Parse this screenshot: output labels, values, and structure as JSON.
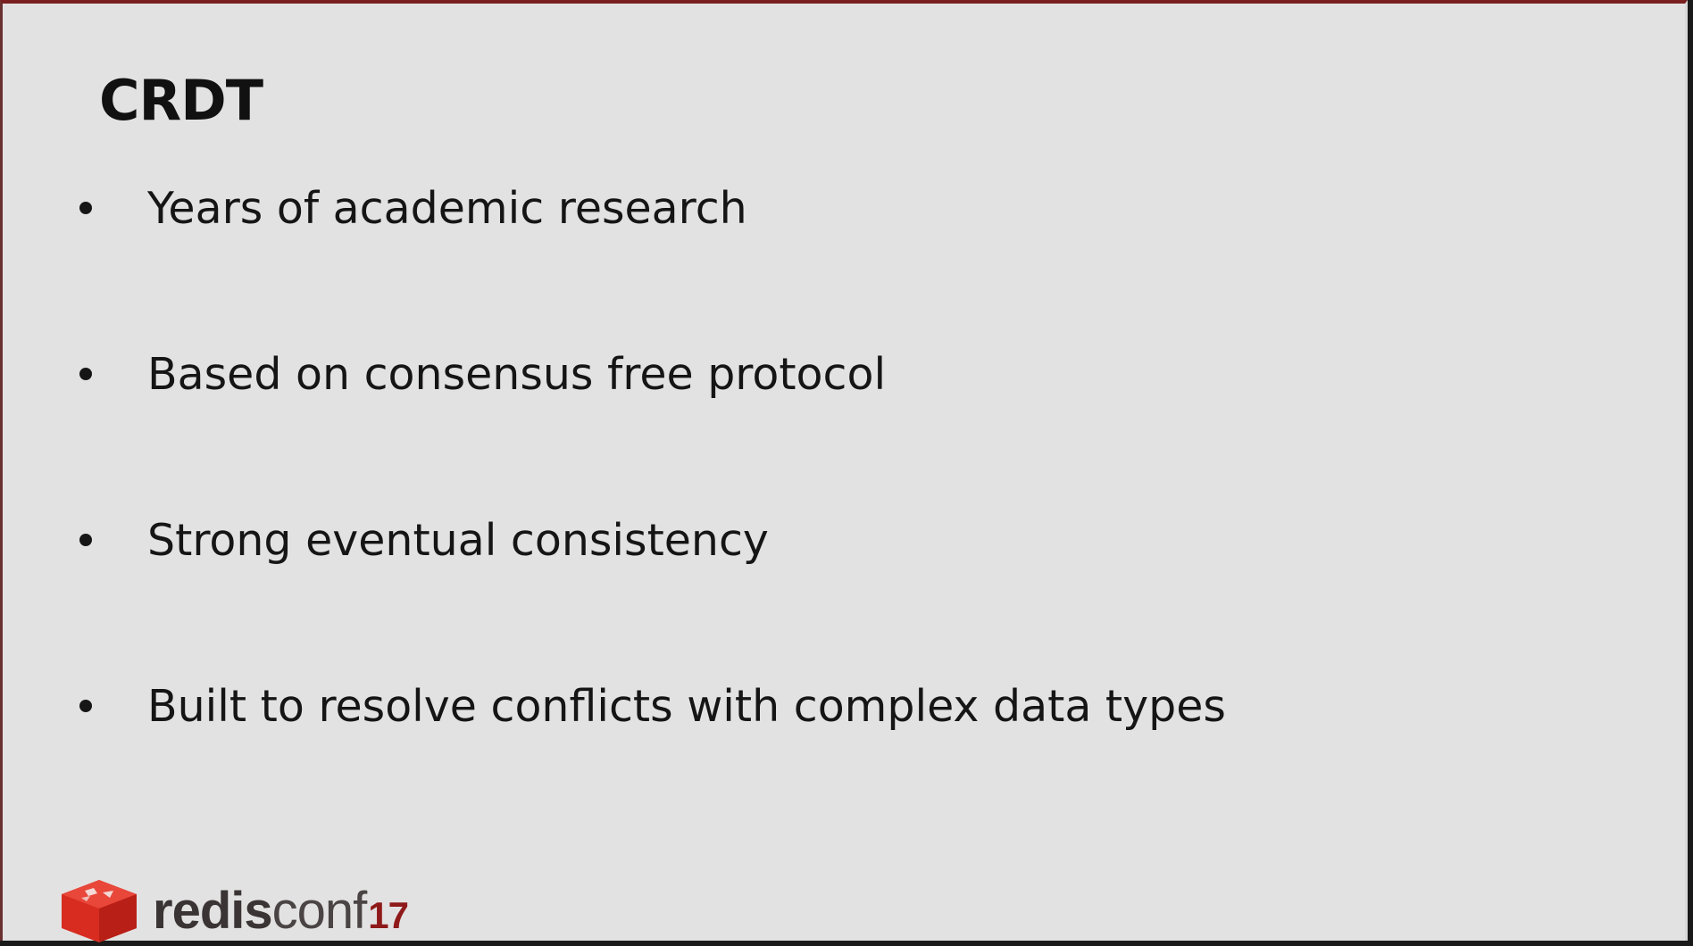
{
  "slide": {
    "title": "CRDT",
    "bullets": [
      "Years of academic research",
      "Based on consensus free protocol",
      "Strong eventual consistency",
      "Built to resolve conflicts with complex data types"
    ]
  },
  "footer": {
    "logo_part1": "redis",
    "logo_part2": "conf",
    "logo_year": "17",
    "logo_icon": "redis-cube-icon",
    "brand_color": "#d82c20"
  }
}
